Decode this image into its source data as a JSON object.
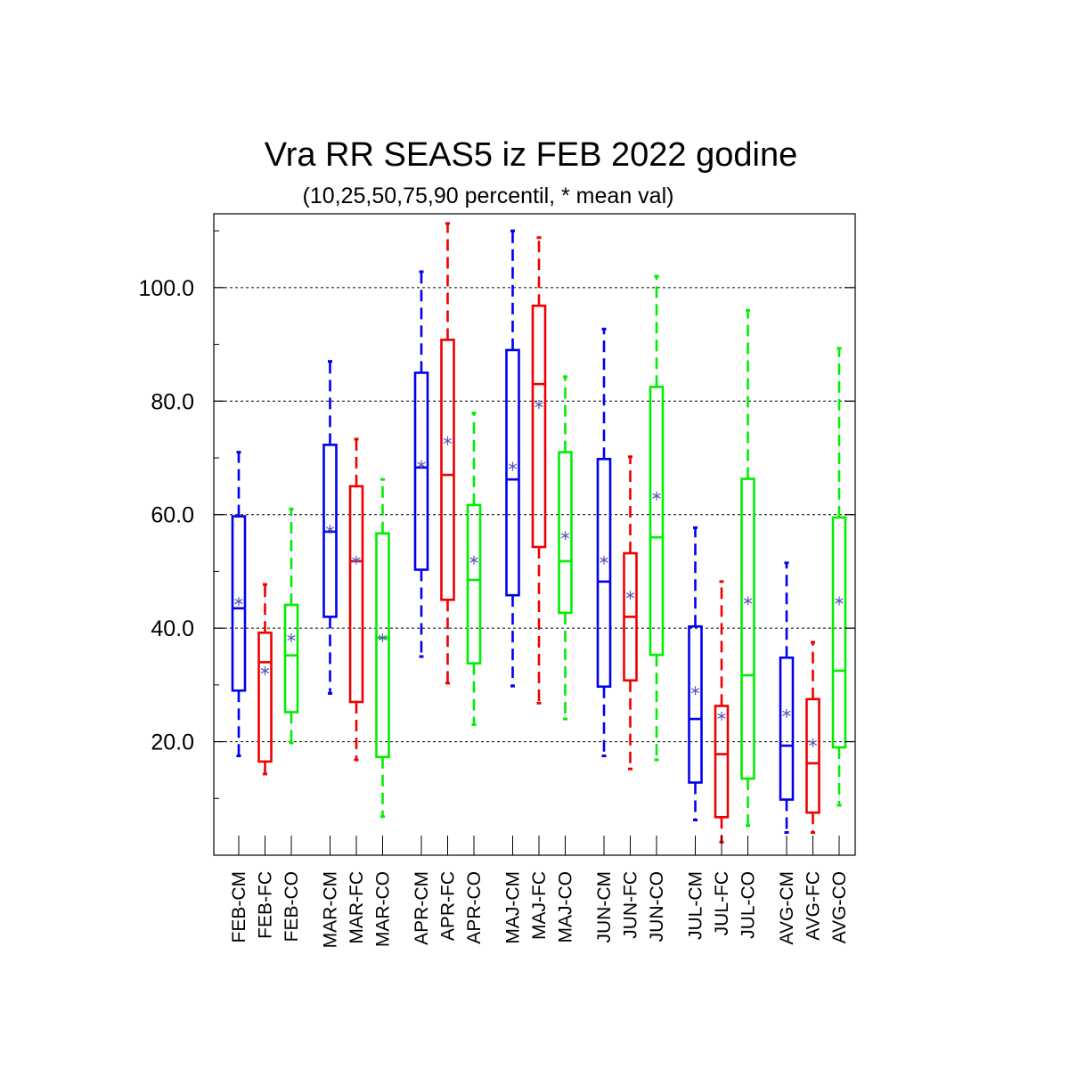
{
  "chart_data": {
    "type": "box",
    "title": "Vra RR SEAS5 iz FEB 2022 godine",
    "subtitle": "(10,25,50,75,90 percentil, * mean val)",
    "ylim": [
      0,
      113
    ],
    "yticks": [
      "20.0",
      "40.0",
      "60.0",
      "80.0",
      "100.0"
    ],
    "ytick_values": [
      20,
      40,
      60,
      80,
      100
    ],
    "grid": "horizontal dashed at labeled ticks",
    "series_colors": {
      "CM": "#0000ee",
      "FC": "#ee0000",
      "CO": "#00ee00"
    },
    "mean_marker_color": "#5555bb",
    "boxes": [
      {
        "label": "FEB-CM",
        "color": "#0000ee",
        "p10": 17.5,
        "p25": 29.0,
        "p50": 43.5,
        "p75": 59.7,
        "p90": 71.0,
        "mean": 44.7
      },
      {
        "label": "FEB-FC",
        "color": "#ee0000",
        "p10": 14.3,
        "p25": 16.5,
        "p50": 34.0,
        "p75": 39.2,
        "p90": 47.7,
        "mean": 32.5
      },
      {
        "label": "FEB-CO",
        "color": "#00ee00",
        "p10": 19.8,
        "p25": 25.2,
        "p50": 35.2,
        "p75": 44.1,
        "p90": 61.0,
        "mean": 38.3
      },
      {
        "label": "MAR-CM",
        "color": "#0000ee",
        "p10": 28.5,
        "p25": 42.0,
        "p50": 57.0,
        "p75": 72.3,
        "p90": 87.0,
        "mean": 57.4
      },
      {
        "label": "MAR-FC",
        "color": "#ee0000",
        "p10": 16.8,
        "p25": 27.0,
        "p50": 51.8,
        "p75": 65.0,
        "p90": 73.3,
        "mean": 52.0
      },
      {
        "label": "MAR-CO",
        "color": "#00ee00",
        "p10": 6.8,
        "p25": 17.3,
        "p50": 38.3,
        "p75": 56.7,
        "p90": 66.2,
        "mean": 38.3
      },
      {
        "label": "APR-CM",
        "color": "#0000ee",
        "p10": 35.0,
        "p25": 50.3,
        "p50": 68.3,
        "p75": 85.0,
        "p90": 102.8,
        "mean": 68.8
      },
      {
        "label": "APR-FC",
        "color": "#ee0000",
        "p10": 30.3,
        "p25": 45.0,
        "p50": 67.0,
        "p75": 90.8,
        "p90": 111.3,
        "mean": 73.0
      },
      {
        "label": "APR-CO",
        "color": "#00ee00",
        "p10": 23.0,
        "p25": 33.8,
        "p50": 48.5,
        "p75": 61.7,
        "p90": 77.9,
        "mean": 52.0
      },
      {
        "label": "MAJ-CM",
        "color": "#0000ee",
        "p10": 29.8,
        "p25": 45.8,
        "p50": 66.2,
        "p75": 89.0,
        "p90": 110.0,
        "mean": 68.5
      },
      {
        "label": "MAJ-FC",
        "color": "#ee0000",
        "p10": 26.8,
        "p25": 54.3,
        "p50": 83.0,
        "p75": 96.8,
        "p90": 108.8,
        "mean": 79.4
      },
      {
        "label": "MAJ-CO",
        "color": "#00ee00",
        "p10": 24.0,
        "p25": 42.7,
        "p50": 51.8,
        "p75": 71.0,
        "p90": 84.3,
        "mean": 56.3
      },
      {
        "label": "JUN-CM",
        "color": "#0000ee",
        "p10": 17.5,
        "p25": 29.7,
        "p50": 48.2,
        "p75": 69.8,
        "p90": 92.7,
        "mean": 52.0
      },
      {
        "label": "JUN-FC",
        "color": "#ee0000",
        "p10": 15.2,
        "p25": 30.8,
        "p50": 42.0,
        "p75": 53.2,
        "p90": 70.2,
        "mean": 45.8
      },
      {
        "label": "JUN-CO",
        "color": "#00ee00",
        "p10": 16.8,
        "p25": 35.3,
        "p50": 56.0,
        "p75": 82.5,
        "p90": 102.0,
        "mean": 63.3
      },
      {
        "label": "JUL-CM",
        "color": "#0000ee",
        "p10": 6.2,
        "p25": 12.8,
        "p50": 24.0,
        "p75": 40.3,
        "p90": 57.7,
        "mean": 29.0
      },
      {
        "label": "JUL-FC",
        "color": "#ee0000",
        "p10": 2.3,
        "p25": 6.7,
        "p50": 17.8,
        "p75": 26.3,
        "p90": 48.2,
        "mean": 24.5
      },
      {
        "label": "JUL-CO",
        "color": "#00ee00",
        "p10": 5.2,
        "p25": 13.5,
        "p50": 31.7,
        "p75": 66.3,
        "p90": 96.0,
        "mean": 44.8
      },
      {
        "label": "AVG-CM",
        "color": "#0000ee",
        "p10": 4.0,
        "p25": 9.8,
        "p50": 19.3,
        "p75": 34.8,
        "p90": 51.5,
        "mean": 25.0
      },
      {
        "label": "AVG-FC",
        "color": "#ee0000",
        "p10": 4.0,
        "p25": 7.5,
        "p50": 16.2,
        "p75": 27.5,
        "p90": 37.5,
        "mean": 19.8
      },
      {
        "label": "AVG-CO",
        "color": "#00ee00",
        "p10": 8.8,
        "p25": 19.0,
        "p50": 32.5,
        "p75": 59.5,
        "p90": 89.3,
        "mean": 44.8
      }
    ]
  }
}
